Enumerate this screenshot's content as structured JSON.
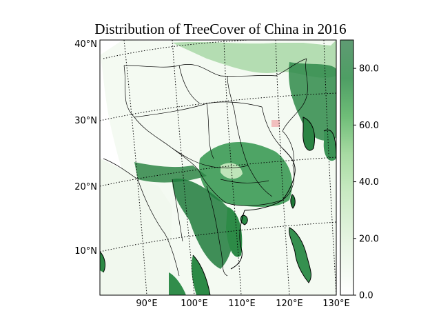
{
  "title": "Distribution of TreeCover of China in 2016",
  "map": {
    "lat_labels": [
      "40°N",
      "30°N",
      "20°N",
      "10°N"
    ],
    "lon_labels": [
      "90°E",
      "100°E",
      "110°E",
      "120°E",
      "130°E"
    ],
    "gridlines": true,
    "gridline_style": "dotted",
    "projection_outline": "conic"
  },
  "colorbar": {
    "min": 0.0,
    "max": 90.0,
    "ticks": [
      "0.0",
      "20.0",
      "40.0",
      "60.0",
      "80.0"
    ],
    "colormap": "Greens",
    "colors": [
      "#f7fcf5",
      "#e5f5e0",
      "#c7e9c0",
      "#a1d99b",
      "#74c476",
      "#41ab5d",
      "#238b45",
      "#006d2c",
      "#00441b"
    ]
  },
  "colors": {
    "land_low": "#f2f9ef",
    "forest_mid": "#5fb36d",
    "forest_high": "#1e7a3c",
    "border": "#000000",
    "highlight": "#e8a0a0"
  }
}
